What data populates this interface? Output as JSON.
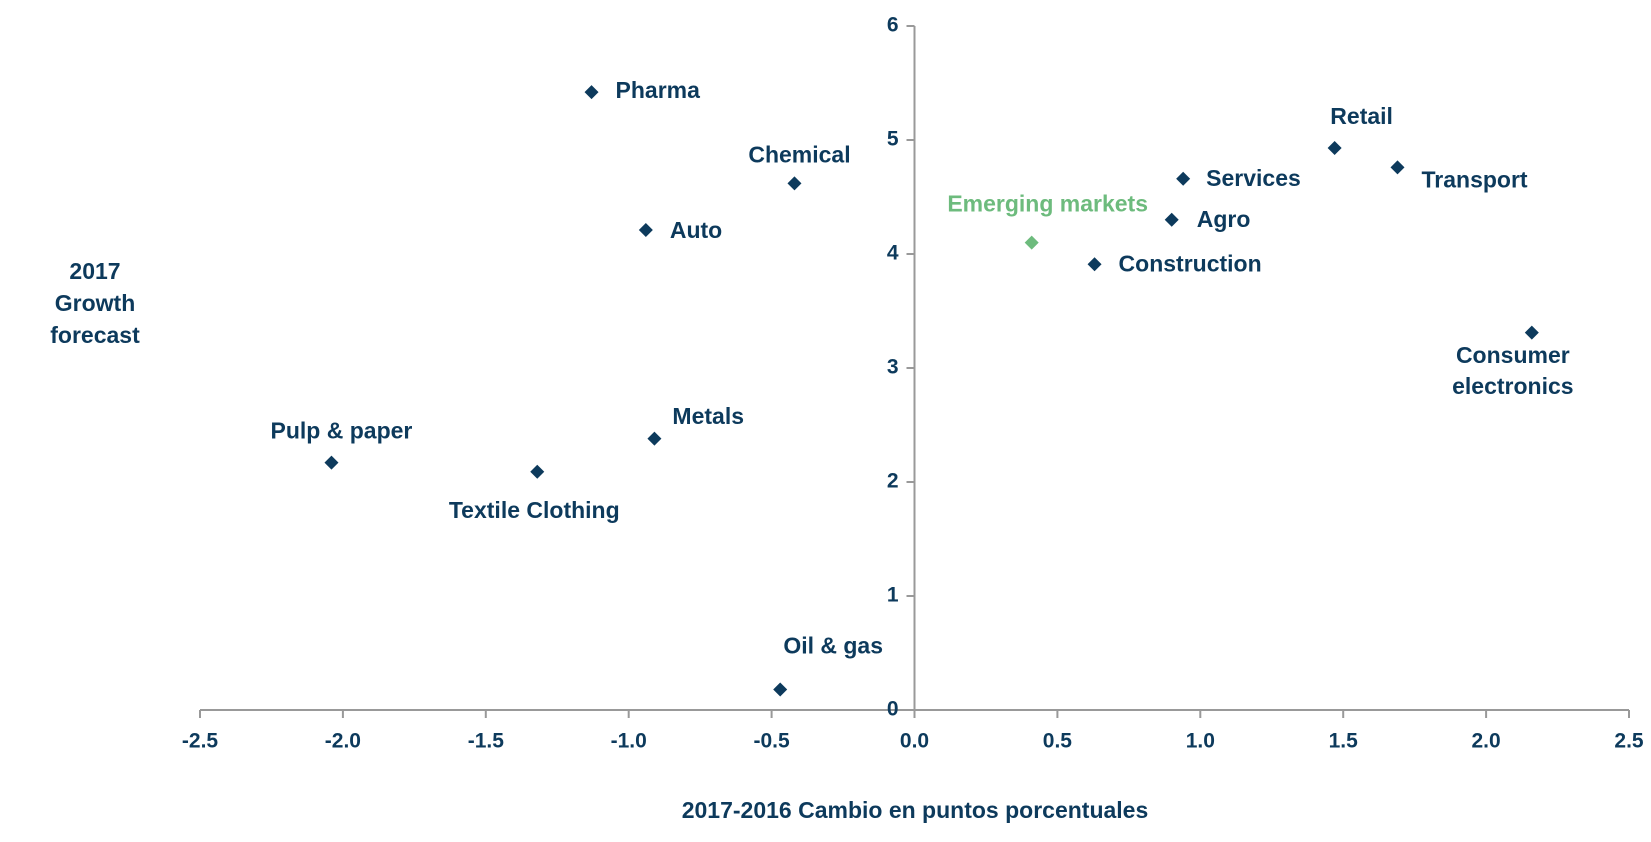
{
  "chart_data": {
    "type": "scatter",
    "x_label": "2017-2016 Cambio en puntos porcentuales",
    "y_label": "2017 Growth forecast",
    "xlim": [
      -2.5,
      2.5
    ],
    "xticks": [
      -2.5,
      {
        "value": -2,
        "label": "-2.0"
      },
      -1.5,
      {
        "value": -1,
        "label": "-1.0"
      },
      -0.5,
      {
        "value": 0,
        "label": "0.0"
      },
      0.5,
      {
        "value": 1,
        "label": "1.0"
      },
      1.5,
      {
        "value": 2,
        "label": "2.0"
      },
      2.5
    ],
    "ylim": [
      0,
      6
    ],
    "yticks": [
      0,
      1,
      2,
      3,
      4,
      5,
      6
    ],
    "points": [
      {
        "label": "Pharma",
        "x": -1.13,
        "y": 5.42,
        "color": "#0d3a5c"
      },
      {
        "label": "Chemical",
        "x": -0.42,
        "y": 4.62,
        "color": "#0d3a5c"
      },
      {
        "label": "Auto",
        "x": -0.94,
        "y": 4.21,
        "color": "#0d3a5c"
      },
      {
        "label": "Emerging markets",
        "x": 0.41,
        "y": 4.1,
        "color": "#6dbb7d"
      },
      {
        "label": "Services",
        "x": 0.94,
        "y": 4.66,
        "color": "#0d3a5c"
      },
      {
        "label": "Agro",
        "x": 0.9,
        "y": 4.3,
        "color": "#0d3a5c"
      },
      {
        "label": "Construction",
        "x": 0.63,
        "y": 3.91,
        "color": "#0d3a5c"
      },
      {
        "label": "Retail",
        "x": 1.47,
        "y": 4.93,
        "color": "#0d3a5c"
      },
      {
        "label": "Transport",
        "x": 1.69,
        "y": 4.76,
        "color": "#0d3a5c"
      },
      {
        "label": "Consumer electronics",
        "x": 2.16,
        "y": 3.31,
        "color": "#0d3a5c"
      },
      {
        "label": "Metals",
        "x": -0.91,
        "y": 2.38,
        "color": "#0d3a5c"
      },
      {
        "label": "Pulp & paper",
        "x": -2.04,
        "y": 2.17,
        "color": "#0d3a5c"
      },
      {
        "label": "Textile Clothing",
        "x": -1.32,
        "y": 2.09,
        "color": "#0d3a5c"
      },
      {
        "label": "Oil & gas",
        "x": -0.47,
        "y": 0.18,
        "color": "#0d3a5c"
      }
    ]
  }
}
